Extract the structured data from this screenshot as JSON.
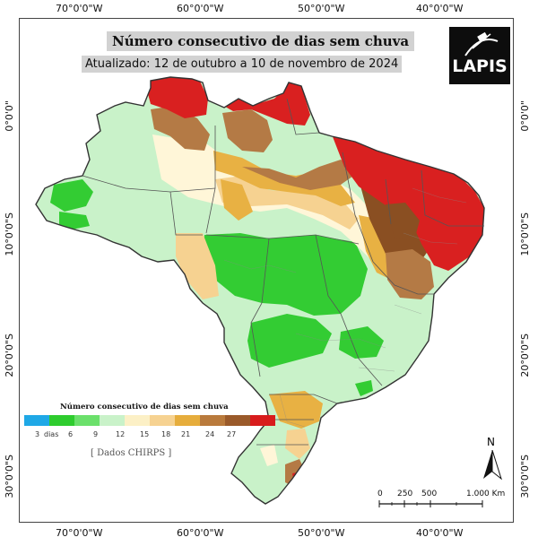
{
  "map": {
    "title": "Número consecutivo de dias sem chuva",
    "subtitle": "Atualizado: 12 de outubro a 10 de novembro de 2024",
    "logo_text": "LAPIS",
    "top_ticks": [
      "70°0'0\"W",
      "60°0'0\"W",
      "50°0'0\"W",
      "40°0'0\"W"
    ],
    "bottom_ticks": [
      "70°0'0\"W",
      "60°0'0\"W",
      "50°0'0\"W",
      "40°0'0\"W"
    ],
    "left_ticks": [
      "0°0'0\"",
      "10°0'0\"S",
      "20°0'0\"S",
      "30°0'0\"S"
    ],
    "right_ticks": [
      "0°0'0\"",
      "10°0'0\"S",
      "20°0'0\"S",
      "30°0'0\"S"
    ],
    "source": "[ Dados CHIRPS ]",
    "north": "N",
    "scale_labels": [
      "0",
      "250",
      "500",
      "1.000 Km"
    ]
  },
  "legend": {
    "title": "Número consecutivo de dias sem chuva",
    "labels": [
      "3",
      "dias",
      "6",
      "9",
      "12",
      "15",
      "18",
      "21",
      "24",
      "27"
    ],
    "colors": [
      "#1fa8e6",
      "#2ecc2e",
      "#6be06b",
      "#c9f2c9",
      "#fcf0c6",
      "#f6d291",
      "#e6ad3c",
      "#b97a3c",
      "#9a5a2a",
      "#d81c1c"
    ]
  },
  "palette": {
    "green": "#33cc33",
    "light_green": "#c9f2c9",
    "cream": "#fff6d8",
    "light_orange": "#f6d291",
    "orange": "#e8b143",
    "brown": "#b47a45",
    "dark_brown": "#8a4f22",
    "red": "#d92020",
    "border": "#555555"
  }
}
